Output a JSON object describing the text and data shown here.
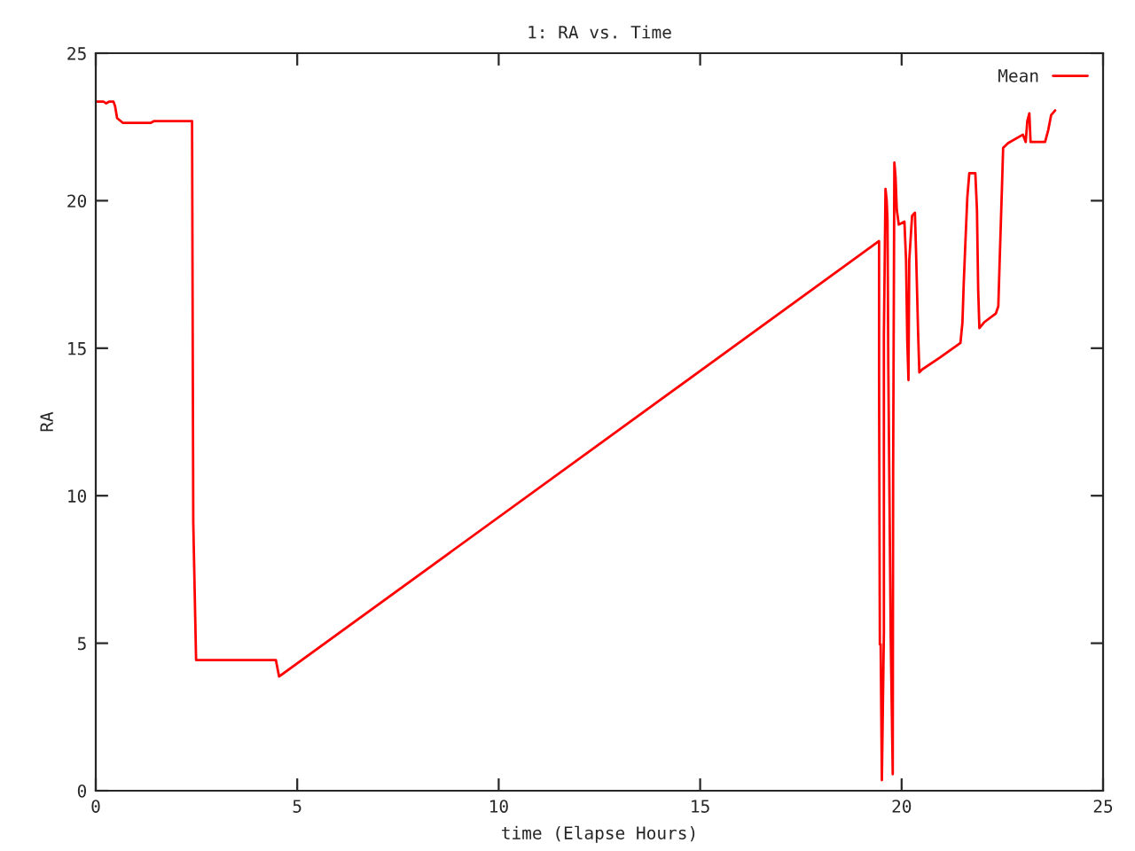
{
  "chart_data": {
    "type": "line",
    "title": "1: RA vs. Time",
    "xlabel": "time (Elapse Hours)",
    "ylabel": "RA",
    "xlim": [
      0,
      25
    ],
    "ylim": [
      0,
      25
    ],
    "xticks": [
      0,
      5,
      10,
      15,
      20,
      25
    ],
    "yticks": [
      0,
      5,
      10,
      15,
      20,
      25
    ],
    "grid": false,
    "legend": "top right",
    "marker": "none",
    "line_style": "solid",
    "series": [
      {
        "name": "Mean",
        "color": "#ff0000",
        "x": [
          0,
          0.19,
          0.26,
          0.34,
          0.44,
          0.48,
          0.53,
          0.67,
          1.37,
          1.45,
          2.39,
          2.42,
          2.49,
          4.47,
          4.55,
          19.44,
          19.44,
          19.46,
          19.48,
          19.51,
          19.56,
          19.56,
          19.6,
          19.63,
          19.65,
          19.67,
          19.73,
          19.78,
          19.79,
          19.82,
          19.85,
          19.88,
          19.93,
          20.07,
          20.11,
          20.14,
          20.17,
          20.19,
          20.26,
          20.33,
          20.36,
          20.41,
          20.44,
          20.51,
          20.95,
          21.46,
          21.51,
          21.54,
          21.58,
          21.63,
          21.68,
          21.83,
          21.87,
          21.9,
          21.93,
          22.05,
          22.34,
          22.4,
          22.43,
          22.49,
          22.52,
          22.64,
          23.01,
          23.08,
          23.12,
          23.17,
          23.2,
          23.27,
          23.56,
          23.64,
          23.71,
          23.81
        ],
        "values": [
          23.36,
          23.36,
          23.3,
          23.36,
          23.36,
          23.2,
          22.8,
          22.64,
          22.64,
          22.7,
          22.7,
          9.1,
          4.43,
          4.43,
          3.87,
          18.63,
          14.08,
          4.96,
          4.96,
          0.36,
          5.37,
          15.4,
          20.4,
          20.0,
          19.29,
          14.38,
          5.17,
          0.56,
          10.88,
          21.29,
          20.79,
          19.69,
          19.19,
          19.29,
          17.99,
          15.29,
          13.92,
          17.99,
          19.49,
          19.59,
          18.19,
          15.49,
          14.18,
          14.28,
          14.68,
          15.18,
          15.88,
          17.13,
          18.49,
          20.09,
          20.93,
          20.93,
          19.69,
          16.99,
          15.68,
          15.88,
          16.18,
          16.42,
          17.79,
          20.43,
          21.79,
          21.95,
          22.24,
          21.99,
          22.7,
          22.96,
          21.99,
          21.99,
          21.99,
          22.4,
          22.9,
          23.06
        ]
      }
    ]
  }
}
